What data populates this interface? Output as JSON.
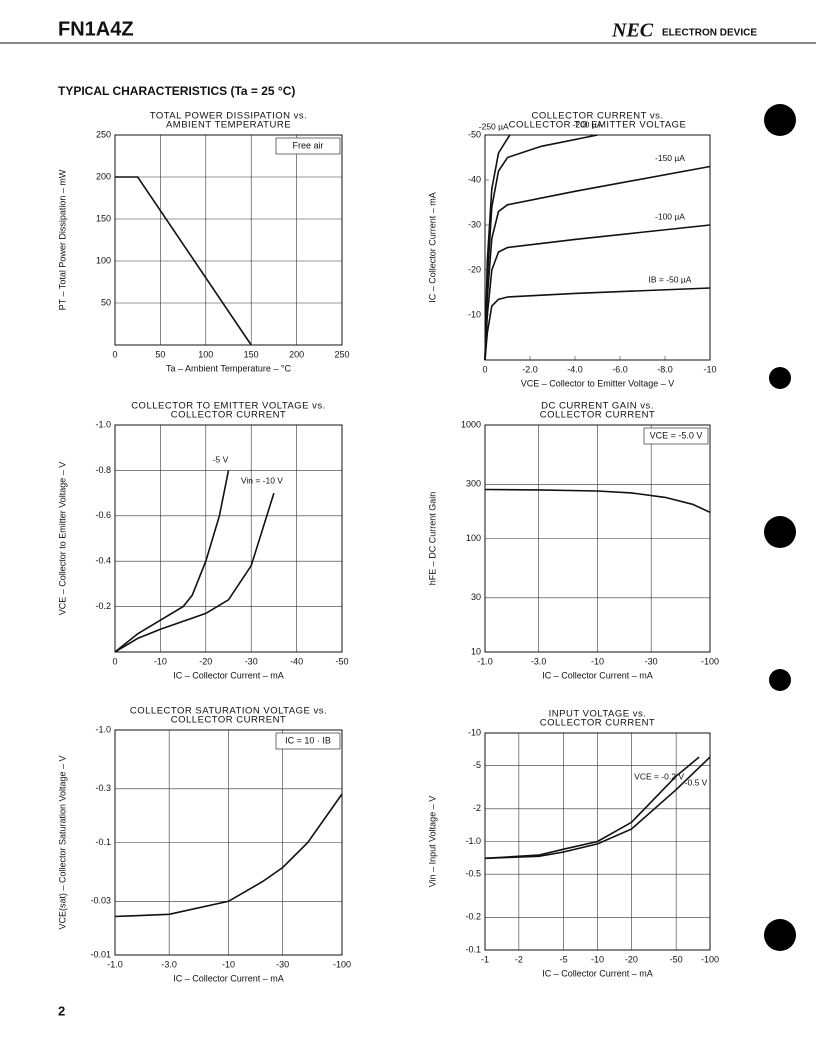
{
  "header": {
    "part": "FN1A4Z",
    "brand": "NEC",
    "division": "ELECTRON DEVICE"
  },
  "section": "TYPICAL CHARACTERISTICS (Ta = 25 °C)",
  "page_number": "2",
  "chart_data": [
    {
      "type": "line",
      "title": [
        "TOTAL POWER DISSIPATION vs.",
        "AMBIENT TEMPERATURE"
      ],
      "xlabel": "Ta – Ambient Temperature – °C",
      "ylabel": "PT – Total Power Dissipation – mW",
      "annotation": "Free air",
      "xlim": [
        0,
        250
      ],
      "ylim": [
        0,
        250
      ],
      "xticks": [
        0,
        50,
        100,
        150,
        200,
        250
      ],
      "yticks": [
        50,
        100,
        150,
        200,
        250
      ],
      "grid": true,
      "xlog": false,
      "ylog": false,
      "series": [
        {
          "color": "#111111",
          "x": [
            0,
            25,
            150
          ],
          "values": [
            200,
            200,
            0
          ]
        }
      ]
    },
    {
      "type": "line",
      "title": [
        "COLLECTOR CURRENT vs.",
        "COLLECTOR TO EMITTER VOLTAGE"
      ],
      "xlabel": "VCE – Collector to Emitter Voltage – V",
      "ylabel": "IC – Collector Current – mA",
      "xlim": [
        0,
        -10
      ],
      "ylim": [
        0,
        -50
      ],
      "xticks": [
        0,
        {
          "value": -2,
          "label": "-2.0"
        },
        {
          "value": -4,
          "label": "-4.0"
        },
        {
          "value": -6,
          "label": "-6.0"
        },
        {
          "value": -8,
          "label": "-8.0"
        },
        -10
      ],
      "yticks": [
        -10,
        -20,
        -30,
        -40,
        -50
      ],
      "grid": false,
      "xlog": false,
      "ylog": false,
      "series": [
        {
          "name": "IB = -50 µA",
          "color": "#111111",
          "x": [
            0,
            -0.1,
            -0.3,
            -0.6,
            -1,
            -4,
            -10
          ],
          "values": [
            0,
            -6,
            -12,
            -13.5,
            -14,
            -14.8,
            -16
          ]
        },
        {
          "name": "-100 µA",
          "color": "#111111",
          "x": [
            0,
            -0.1,
            -0.3,
            -0.6,
            -1,
            -4,
            -10
          ],
          "values": [
            0,
            -10,
            -20,
            -24,
            -25,
            -26.8,
            -30
          ]
        },
        {
          "name": "-150 µA",
          "color": "#111111",
          "x": [
            0,
            -0.1,
            -0.3,
            -0.6,
            -1,
            -4,
            -10
          ],
          "values": [
            0,
            -14,
            -27,
            -33,
            -34.5,
            -37.5,
            -43
          ]
        },
        {
          "name": "-200 µA",
          "color": "#111111",
          "x": [
            0,
            -0.1,
            -0.3,
            -0.6,
            -1,
            -2.5,
            -5
          ],
          "values": [
            0,
            -18,
            -34,
            -42,
            -45,
            -47.5,
            -50
          ]
        },
        {
          "name": "-250 µA",
          "color": "#111111",
          "x": [
            0,
            -0.1,
            -0.3,
            -0.6,
            -1.1
          ],
          "values": [
            0,
            -22,
            -38,
            -46,
            -50
          ]
        }
      ]
    },
    {
      "type": "line",
      "title": [
        "COLLECTOR TO EMITTER VOLTAGE vs.",
        "COLLECTOR CURRENT"
      ],
      "xlabel": "IC – Collector Current – mA",
      "ylabel": "VCE – Collector to Emitter Voltage – V",
      "xlim": [
        0,
        -50
      ],
      "ylim": [
        0,
        -1
      ],
      "xticks": [
        0,
        -10,
        -20,
        -30,
        -40,
        -50
      ],
      "yticks": [
        -0.2,
        -0.4,
        -0.6,
        -0.8,
        {
          "value": -1,
          "label": "-1.0"
        }
      ],
      "grid": true,
      "xlog": false,
      "ylog": false,
      "series": [
        {
          "name": "-5 V",
          "color": "#111111",
          "x": [
            0,
            -5,
            -10,
            -15,
            -17,
            -20,
            -23,
            -25
          ],
          "values": [
            0,
            -0.08,
            -0.14,
            -0.2,
            -0.25,
            -0.4,
            -0.6,
            -0.8
          ]
        },
        {
          "name": "Vin = -10 V",
          "color": "#111111",
          "x": [
            0,
            -5,
            -10,
            -20,
            -25,
            -30,
            -35
          ],
          "values": [
            0,
            -0.06,
            -0.1,
            -0.17,
            -0.23,
            -0.38,
            -0.7
          ]
        }
      ]
    },
    {
      "type": "line",
      "title": [
        "DC CURRENT GAIN vs.",
        "COLLECTOR CURRENT"
      ],
      "xlabel": "IC – Collector Current – mA",
      "ylabel": "hFE – DC Current Gain",
      "annotation": "VCE = -5.0 V",
      "xlim": [
        -1,
        -100
      ],
      "ylim": [
        10,
        1000
      ],
      "xticks": [
        {
          "value": -1,
          "label": "-1.0"
        },
        {
          "value": -3,
          "label": "-3.0"
        },
        -10,
        -30,
        -100
      ],
      "yticks": [
        10,
        30,
        100,
        300,
        1000
      ],
      "grid": true,
      "xlog": true,
      "ylog": true,
      "series": [
        {
          "color": "#111111",
          "x": [
            -1,
            -3,
            -10,
            -20,
            -40,
            -70,
            -100
          ],
          "values": [
            270,
            268,
            262,
            252,
            230,
            200,
            170
          ]
        }
      ]
    },
    {
      "type": "line",
      "title": [
        "COLLECTOR SATURATION VOLTAGE vs.",
        "COLLECTOR CURRENT"
      ],
      "xlabel": "IC – Collector Current – mA",
      "ylabel": "VCE(sat) – Collector Saturation Voltage – V",
      "annotation": "IC = 10 · IB",
      "xlim": [
        -1,
        -100
      ],
      "ylim": [
        -0.01,
        -1
      ],
      "xticks": [
        {
          "value": -1,
          "label": "-1.0"
        },
        {
          "value": -3,
          "label": "-3.0"
        },
        -10,
        -30,
        -100
      ],
      "yticks": [
        -0.01,
        -0.03,
        -0.1,
        -0.3,
        {
          "value": -1,
          "label": "-1.0"
        }
      ],
      "grid": true,
      "xlog": true,
      "ylog": true,
      "series": [
        {
          "color": "#111111",
          "x": [
            -1,
            -3,
            -10,
            -20,
            -30,
            -50,
            -100
          ],
          "values": [
            -0.022,
            -0.023,
            -0.03,
            -0.045,
            -0.06,
            -0.1,
            -0.27
          ]
        }
      ]
    },
    {
      "type": "line",
      "title": [
        "INPUT VOLTAGE vs.",
        "COLLECTOR CURRENT"
      ],
      "xlabel": "IC – Collector Current – mA",
      "ylabel": "Vin – Input Voltage – V",
      "xlim": [
        -1,
        -100
      ],
      "ylim": [
        -0.1,
        -10
      ],
      "xticks": [
        -1,
        -2,
        -5,
        -10,
        -20,
        -50,
        -100
      ],
      "yticks": [
        -0.1,
        -0.2,
        -0.5,
        {
          "value": -1,
          "label": "-1.0"
        },
        -2,
        -5,
        -10
      ],
      "grid": true,
      "xlog": true,
      "ylog": true,
      "series": [
        {
          "name": "VCE = -0.2 V",
          "color": "#111111",
          "x": [
            -1,
            -3,
            -5,
            -10,
            -20,
            -50,
            -80
          ],
          "values": [
            -0.7,
            -0.75,
            -0.85,
            -1,
            -1.5,
            -4,
            -6
          ]
        },
        {
          "name": "-0.5 V",
          "color": "#111111",
          "x": [
            -1,
            -3,
            -5,
            -10,
            -20,
            -50,
            -100
          ],
          "values": [
            -0.7,
            -0.73,
            -0.8,
            -0.95,
            -1.3,
            -3,
            -6
          ]
        }
      ]
    }
  ]
}
